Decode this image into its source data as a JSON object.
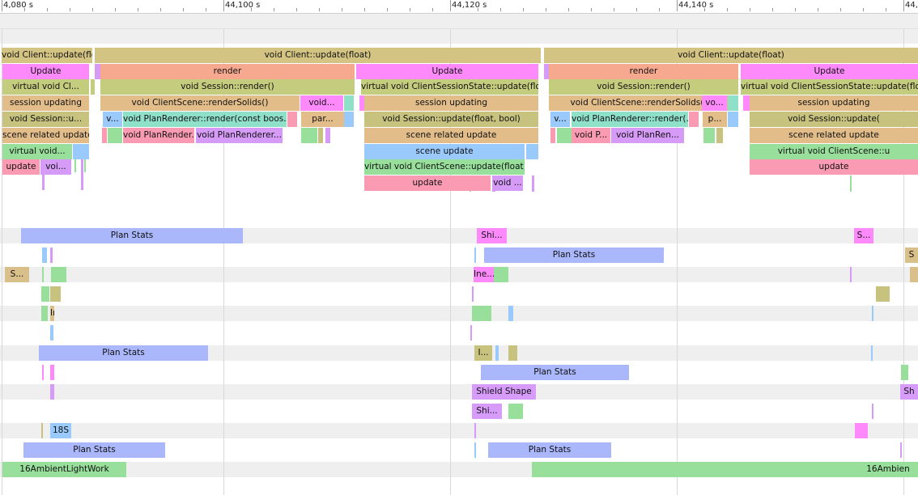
{
  "ruler": {
    "labels": [
      "4,080 s",
      "44,100 s",
      "44,120 s",
      "44,140 s",
      "44,"
    ]
  },
  "colors": {
    "tan": "#d4c483",
    "pink": "#fd89fa",
    "salmon": "#f7a98f",
    "olive": "#c4cc7d",
    "brown": "#e2bd8a",
    "green": "#98df9c",
    "blue": "#9ac9fb",
    "rose": "#fb9bb3",
    "violet": "#d69af7",
    "periwinkle": "#aab7fb",
    "sand": "#d9bf8a",
    "teal": "#8ee0c8",
    "lilac": "#d79cf9",
    "khaki": "#c8c27f"
  },
  "bars": [
    {
      "label": "void Client::update(float)",
      "color": "tan",
      "row": 0
    },
    {
      "label": "void Client::update(float)",
      "color": "tan",
      "row": 0
    },
    {
      "label": "void Client::update(float)",
      "color": "tan",
      "row": 0
    },
    {
      "label": "Update",
      "color": "pink",
      "row": 1
    },
    {
      "label": "",
      "color": "violet",
      "row": 1
    },
    {
      "label": "render",
      "color": "salmon",
      "row": 1
    },
    {
      "label": "Update",
      "color": "pink",
      "row": 1
    },
    {
      "label": "",
      "color": "violet",
      "row": 1
    },
    {
      "label": "render",
      "color": "salmon",
      "row": 1
    },
    {
      "label": "Update",
      "color": "pink",
      "row": 1
    },
    {
      "label": "virtual void Cl...",
      "color": "olive",
      "row": 2
    },
    {
      "label": "",
      "color": "olive",
      "row": 2
    },
    {
      "label": "void Session::render()",
      "color": "olive",
      "row": 2
    },
    {
      "label": "virtual void ClientSessionState::update(float)",
      "color": "olive",
      "row": 2
    },
    {
      "label": "void Session::render()",
      "color": "olive",
      "row": 2
    },
    {
      "label": "virtual void ClientSessionState::update(float)",
      "color": "olive",
      "row": 2
    },
    {
      "label": "session updating",
      "color": "brown",
      "row": 3
    },
    {
      "label": "void ClientScene::renderSolids()",
      "color": "brown",
      "row": 3
    },
    {
      "label": "void...",
      "color": "pink",
      "row": 3
    },
    {
      "label": "",
      "color": "teal",
      "row": 3
    },
    {
      "label": "",
      "color": "pink",
      "row": 3
    },
    {
      "label": "session updating",
      "color": "brown",
      "row": 3
    },
    {
      "label": "void ClientScene::renderSolids()",
      "color": "brown",
      "row": 3
    },
    {
      "label": "vo...",
      "color": "pink",
      "row": 3
    },
    {
      "label": "",
      "color": "teal",
      "row": 3
    },
    {
      "label": "",
      "color": "pink",
      "row": 3
    },
    {
      "label": "session updating",
      "color": "brown",
      "row": 3
    },
    {
      "label": "void Session::u...",
      "color": "khaki",
      "row": 4
    },
    {
      "label": "v...",
      "color": "blue",
      "row": 4
    },
    {
      "label": "void PlanRenderer::render(const boos...",
      "color": "teal",
      "row": 4
    },
    {
      "label": "",
      "color": "rose",
      "row": 4
    },
    {
      "label": "par...",
      "color": "brown",
      "row": 4
    },
    {
      "label": "",
      "color": "blue",
      "row": 4
    },
    {
      "label": "void Session::update(float, bool)",
      "color": "khaki",
      "row": 4
    },
    {
      "label": "v...",
      "color": "blue",
      "row": 4
    },
    {
      "label": "void PlanRenderer::render(...",
      "color": "teal",
      "row": 4
    },
    {
      "label": "",
      "color": "rose",
      "row": 4
    },
    {
      "label": "p...",
      "color": "brown",
      "row": 4
    },
    {
      "label": "",
      "color": "blue",
      "row": 4
    },
    {
      "label": "void Session::update(",
      "color": "khaki",
      "row": 4
    },
    {
      "label": "scene related update",
      "color": "brown",
      "row": 5
    },
    {
      "label": "",
      "color": "rose",
      "row": 5
    },
    {
      "label": "",
      "color": "green",
      "row": 5
    },
    {
      "label": "void PlanRender...",
      "color": "rose",
      "row": 5
    },
    {
      "label": "void PlanRenderer...",
      "color": "violet",
      "row": 5
    },
    {
      "label": "",
      "color": "green",
      "row": 5
    },
    {
      "label": "",
      "color": "khaki",
      "row": 5
    },
    {
      "label": "",
      "color": "violet",
      "row": 5
    },
    {
      "label": "scene related update",
      "color": "brown",
      "row": 5
    },
    {
      "label": "",
      "color": "rose",
      "row": 5
    },
    {
      "label": "",
      "color": "green",
      "row": 5
    },
    {
      "label": "void P...",
      "color": "rose",
      "row": 5
    },
    {
      "label": "void PlanRen...",
      "color": "violet",
      "row": 5
    },
    {
      "label": "",
      "color": "green",
      "row": 5
    },
    {
      "label": "",
      "color": "khaki",
      "row": 5
    },
    {
      "label": "scene related update",
      "color": "brown",
      "row": 5
    },
    {
      "label": "virtual void...",
      "color": "green",
      "row": 6
    },
    {
      "label": "",
      "color": "blue",
      "row": 6
    },
    {
      "label": "scene update",
      "color": "blue",
      "row": 6
    },
    {
      "label": "",
      "color": "blue",
      "row": 6
    },
    {
      "label": "virtual void ClientScene::u",
      "color": "green",
      "row": 6
    },
    {
      "label": "update",
      "color": "rose",
      "row": 7
    },
    {
      "label": "voi...",
      "color": "violet",
      "row": 7
    },
    {
      "label": "virtual void ClientScene::update(float)",
      "color": "green",
      "row": 7
    },
    {
      "label": "update",
      "color": "rose",
      "row": 7
    },
    {
      "label": "update",
      "color": "rose",
      "row": 8
    },
    {
      "label": "void ...",
      "color": "violet",
      "row": 8
    },
    {
      "label": "Plan Stats",
      "color": "periwinkle",
      "row": 10
    },
    {
      "label": "Shi...",
      "color": "pink",
      "row": 10
    },
    {
      "label": "S...",
      "color": "pink",
      "row": 10
    },
    {
      "label": "Plan Stats",
      "color": "periwinkle",
      "row": 11
    },
    {
      "label": "S",
      "color": "sand",
      "row": 11
    },
    {
      "label": "S...",
      "color": "sand",
      "row": 12
    },
    {
      "label": "",
      "color": "green",
      "row": 12
    },
    {
      "label": "Ine...",
      "color": "pink",
      "row": 12
    },
    {
      "label": "",
      "color": "green",
      "row": 12
    },
    {
      "label": "",
      "color": "sand",
      "row": 12
    },
    {
      "label": "",
      "color": "green",
      "row": 13
    },
    {
      "label": "",
      "color": "khaki",
      "row": 13
    },
    {
      "label": "",
      "color": "khaki",
      "row": 13
    },
    {
      "label": "",
      "color": "green",
      "row": 14
    },
    {
      "label": "Ine...",
      "color": "sand",
      "row": 14
    },
    {
      "label": "",
      "color": "green",
      "row": 14
    },
    {
      "label": "",
      "color": "blue",
      "row": 15
    },
    {
      "label": "Plan Stats",
      "color": "periwinkle",
      "row": 16
    },
    {
      "label": "I...",
      "color": "khaki",
      "row": 16
    },
    {
      "label": "",
      "color": "khaki",
      "row": 16
    },
    {
      "label": "",
      "color": "pink",
      "row": 17
    },
    {
      "label": "Plan Stats",
      "color": "periwinkle",
      "row": 17
    },
    {
      "label": "",
      "color": "green",
      "row": 17
    },
    {
      "label": "",
      "color": "violet",
      "row": 18
    },
    {
      "label": "Shield Shape",
      "color": "lilac",
      "row": 18
    },
    {
      "label": "Sh",
      "color": "lilac",
      "row": 18
    },
    {
      "label": "Shi...",
      "color": "lilac",
      "row": 19
    },
    {
      "label": "",
      "color": "green",
      "row": 19
    },
    {
      "label": "18S",
      "color": "blue",
      "row": 20
    },
    {
      "label": "",
      "color": "pink",
      "row": 20
    },
    {
      "label": "Plan Stats",
      "color": "periwinkle",
      "row": 21
    },
    {
      "label": "Plan Stats",
      "color": "periwinkle",
      "row": 21
    },
    {
      "label": "16AmbientLightWork",
      "color": "green",
      "row": 22
    },
    {
      "label": "",
      "color": "green",
      "row": 22
    },
    {
      "label": "16Ambien",
      "color": "green",
      "row": 22
    }
  ]
}
